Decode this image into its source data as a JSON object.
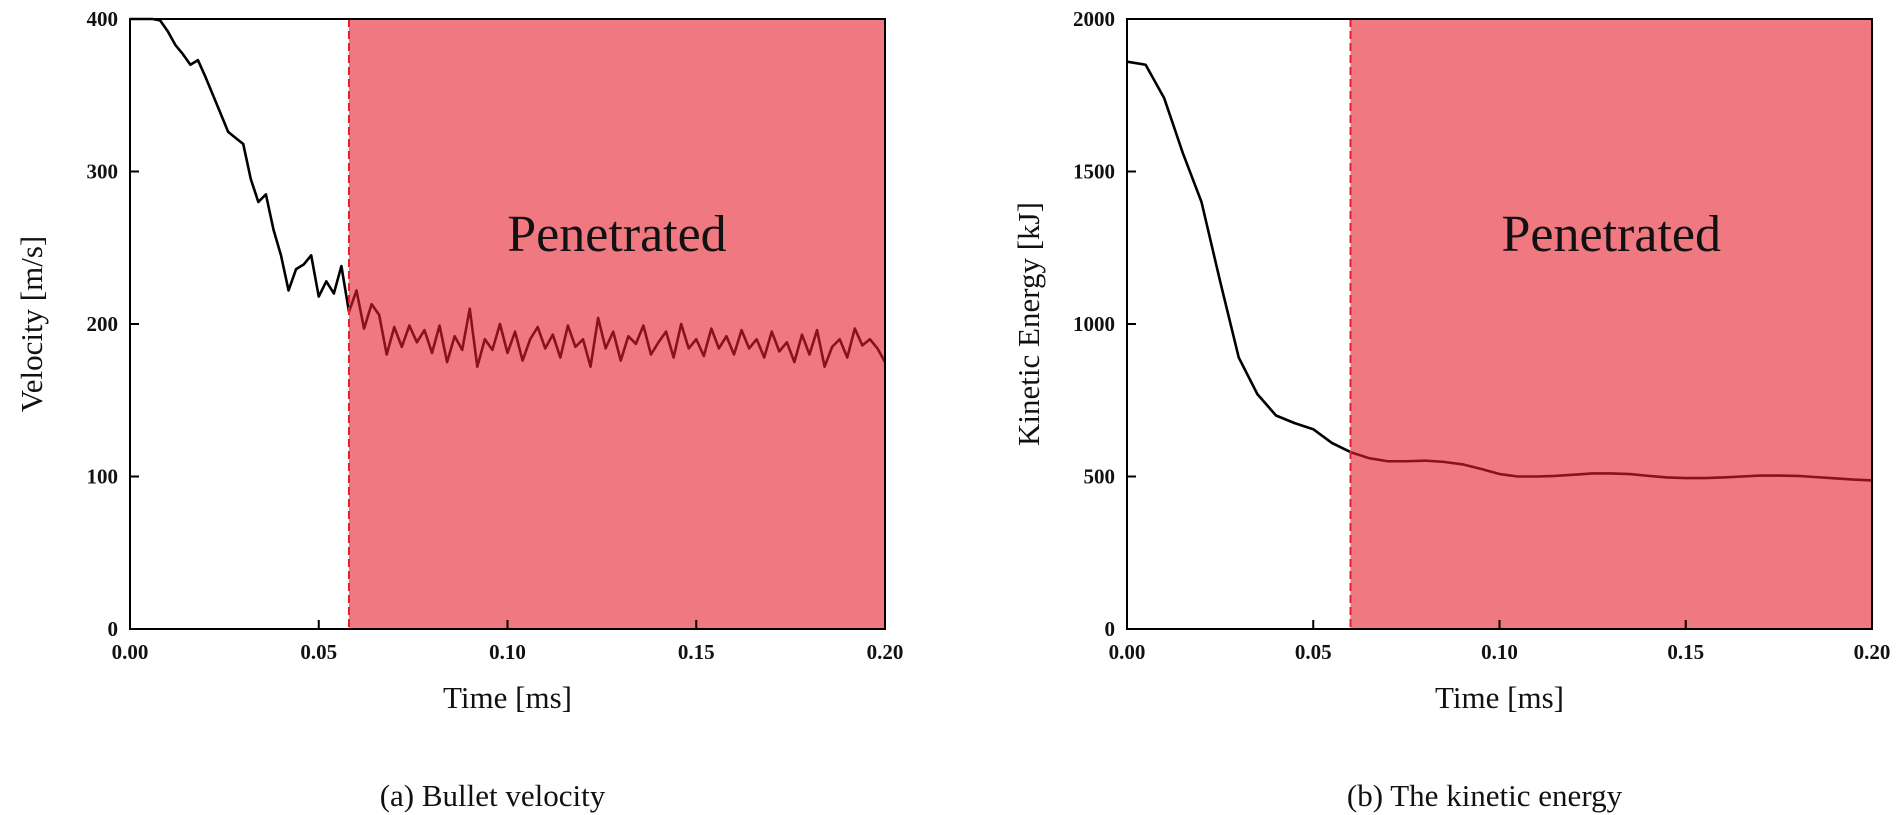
{
  "chart_data": [
    {
      "type": "line",
      "caption": "(a) Bullet velocity",
      "xlabel": "Time [ms]",
      "ylabel": "Velocity [m/s]",
      "annotation": "Penetrated",
      "region": {
        "from": 0.058,
        "to": 0.2,
        "color": "#e61e2d"
      },
      "color": "#000000",
      "x": [
        0,
        0.002,
        0.004,
        0.006,
        0.008,
        0.01,
        0.012,
        0.014,
        0.016,
        0.018,
        0.02,
        0.022,
        0.024,
        0.026,
        0.028,
        0.03,
        0.032,
        0.034,
        0.036,
        0.038,
        0.04,
        0.042,
        0.044,
        0.046,
        0.048,
        0.05,
        0.052,
        0.054,
        0.056,
        0.058,
        0.06,
        0.062,
        0.064,
        0.066,
        0.068,
        0.07,
        0.072,
        0.074,
        0.076,
        0.078,
        0.08,
        0.082,
        0.084,
        0.086,
        0.088,
        0.09,
        0.092,
        0.094,
        0.096,
        0.098,
        0.1,
        0.102,
        0.104,
        0.106,
        0.108,
        0.11,
        0.112,
        0.114,
        0.116,
        0.118,
        0.12,
        0.122,
        0.124,
        0.126,
        0.128,
        0.13,
        0.132,
        0.134,
        0.136,
        0.138,
        0.14,
        0.142,
        0.144,
        0.146,
        0.148,
        0.15,
        0.152,
        0.154,
        0.156,
        0.158,
        0.16,
        0.162,
        0.164,
        0.166,
        0.168,
        0.17,
        0.172,
        0.174,
        0.176,
        0.178,
        0.18,
        0.182,
        0.184,
        0.186,
        0.188,
        0.19,
        0.192,
        0.194,
        0.196,
        0.198,
        0.2
      ],
      "values": [
        400,
        400,
        400,
        400,
        399,
        392,
        383,
        377,
        370,
        373,
        362,
        350,
        338,
        326,
        322,
        318,
        295,
        280,
        285,
        262,
        245,
        222,
        236,
        239,
        245,
        218,
        228,
        220,
        238,
        208,
        222,
        197,
        213,
        206,
        180,
        198,
        185,
        199,
        188,
        196,
        181,
        199,
        175,
        192,
        183,
        210,
        172,
        190,
        183,
        200,
        181,
        195,
        176,
        190,
        198,
        184,
        193,
        178,
        199,
        185,
        190,
        172,
        204,
        184,
        195,
        176,
        192,
        187,
        199,
        180,
        188,
        195,
        178,
        200,
        184,
        190,
        179,
        197,
        184,
        192,
        180,
        196,
        184,
        190,
        178,
        195,
        182,
        188,
        175,
        193,
        180,
        196,
        172,
        185,
        190,
        178,
        197,
        186,
        190,
        184,
        175
      ],
      "xlim": [
        0,
        0.2
      ],
      "ylim": [
        0,
        400
      ],
      "xticks": [
        {
          "value": 0,
          "label": "0.00"
        },
        0.05,
        {
          "value": 0.1,
          "label": "0.10"
        },
        0.15,
        {
          "value": 0.2,
          "label": "0.20"
        }
      ],
      "yticks": [
        0,
        100,
        200,
        300,
        400
      ]
    },
    {
      "type": "line",
      "caption": "(b) The kinetic energy",
      "xlabel": "Time [ms]",
      "ylabel": "Kinetic Energy [kJ]",
      "annotation": "Penetrated",
      "region": {
        "from": 0.06,
        "to": 0.2,
        "color": "#e61e2d"
      },
      "color": "#000000",
      "x": [
        0,
        0.005,
        0.01,
        0.015,
        0.02,
        0.025,
        0.03,
        0.035,
        0.04,
        0.045,
        0.05,
        0.055,
        0.06,
        0.065,
        0.07,
        0.075,
        0.08,
        0.085,
        0.09,
        0.095,
        0.1,
        0.105,
        0.11,
        0.115,
        0.12,
        0.125,
        0.13,
        0.135,
        0.14,
        0.145,
        0.15,
        0.155,
        0.16,
        0.165,
        0.17,
        0.175,
        0.18,
        0.185,
        0.19,
        0.195,
        0.2
      ],
      "values": [
        1860,
        1850,
        1740,
        1560,
        1400,
        1140,
        890,
        770,
        700,
        675,
        655,
        610,
        580,
        560,
        550,
        550,
        552,
        548,
        540,
        525,
        508,
        500,
        500,
        502,
        506,
        510,
        510,
        508,
        502,
        497,
        495,
        495,
        497,
        500,
        503,
        503,
        502,
        498,
        494,
        490,
        487
      ],
      "xlim": [
        0,
        0.2
      ],
      "ylim": [
        0,
        2000
      ],
      "xticks": [
        {
          "value": 0,
          "label": "0.00"
        },
        0.05,
        {
          "value": 0.1,
          "label": "0.10"
        },
        0.15,
        {
          "value": 0.2,
          "label": "0.20"
        }
      ],
      "yticks": [
        0,
        500,
        1000,
        1500,
        2000
      ]
    }
  ]
}
